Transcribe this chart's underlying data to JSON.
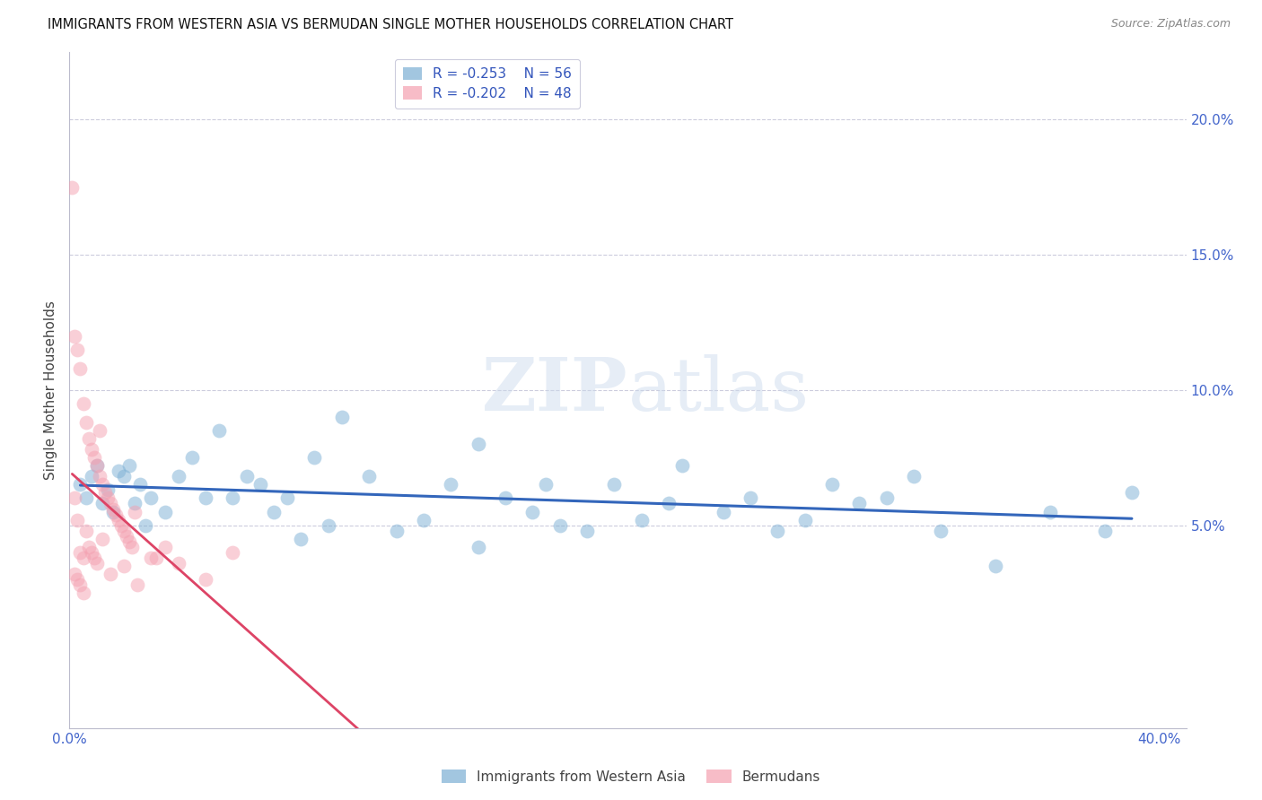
{
  "title": "IMMIGRANTS FROM WESTERN ASIA VS BERMUDAN SINGLE MOTHER HOUSEHOLDS CORRELATION CHART",
  "source": "Source: ZipAtlas.com",
  "ylabel": "Single Mother Households",
  "watermark": "ZIPatlas",
  "legend_label1": "Immigrants from Western Asia",
  "legend_label2": "Bermudans",
  "r1": "-0.253",
  "n1": "56",
  "r2": "-0.202",
  "n2": "48",
  "color_blue": "#7BAFD4",
  "color_pink": "#F4A0B0",
  "trendline_blue": "#3366BB",
  "trendline_pink": "#DD4466",
  "xlim": [
    0.0,
    0.41
  ],
  "ylim": [
    -0.025,
    0.225
  ],
  "blue_x": [
    0.004,
    0.006,
    0.008,
    0.01,
    0.012,
    0.014,
    0.016,
    0.018,
    0.02,
    0.022,
    0.024,
    0.026,
    0.028,
    0.03,
    0.035,
    0.04,
    0.045,
    0.05,
    0.055,
    0.06,
    0.065,
    0.07,
    0.08,
    0.09,
    0.1,
    0.11,
    0.12,
    0.13,
    0.14,
    0.15,
    0.16,
    0.17,
    0.18,
    0.19,
    0.2,
    0.21,
    0.22,
    0.24,
    0.26,
    0.28,
    0.3,
    0.32,
    0.34,
    0.36,
    0.38,
    0.39,
    0.25,
    0.27,
    0.29,
    0.31,
    0.15,
    0.175,
    0.225,
    0.075,
    0.085,
    0.095
  ],
  "blue_y": [
    0.065,
    0.06,
    0.068,
    0.072,
    0.058,
    0.063,
    0.055,
    0.07,
    0.068,
    0.072,
    0.058,
    0.065,
    0.05,
    0.06,
    0.055,
    0.068,
    0.075,
    0.06,
    0.085,
    0.06,
    0.068,
    0.065,
    0.06,
    0.075,
    0.09,
    0.068,
    0.048,
    0.052,
    0.065,
    0.042,
    0.06,
    0.055,
    0.05,
    0.048,
    0.065,
    0.052,
    0.058,
    0.055,
    0.048,
    0.065,
    0.06,
    0.048,
    0.035,
    0.055,
    0.048,
    0.062,
    0.06,
    0.052,
    0.058,
    0.068,
    0.08,
    0.065,
    0.072,
    0.055,
    0.045,
    0.05
  ],
  "pink_x": [
    0.001,
    0.002,
    0.003,
    0.004,
    0.005,
    0.006,
    0.007,
    0.008,
    0.009,
    0.01,
    0.011,
    0.012,
    0.013,
    0.014,
    0.015,
    0.016,
    0.017,
    0.018,
    0.019,
    0.02,
    0.021,
    0.022,
    0.023,
    0.024,
    0.002,
    0.003,
    0.004,
    0.005,
    0.006,
    0.007,
    0.008,
    0.009,
    0.01,
    0.011,
    0.012,
    0.03,
    0.035,
    0.04,
    0.05,
    0.06,
    0.002,
    0.003,
    0.004,
    0.005,
    0.015,
    0.02,
    0.025,
    0.032
  ],
  "pink_y": [
    0.175,
    0.12,
    0.115,
    0.108,
    0.095,
    0.088,
    0.082,
    0.078,
    0.075,
    0.072,
    0.068,
    0.065,
    0.062,
    0.06,
    0.058,
    0.056,
    0.054,
    0.052,
    0.05,
    0.048,
    0.046,
    0.044,
    0.042,
    0.055,
    0.06,
    0.052,
    0.04,
    0.038,
    0.048,
    0.042,
    0.04,
    0.038,
    0.036,
    0.085,
    0.045,
    0.038,
    0.042,
    0.036,
    0.03,
    0.04,
    0.032,
    0.03,
    0.028,
    0.025,
    0.032,
    0.035,
    0.028,
    0.038
  ]
}
